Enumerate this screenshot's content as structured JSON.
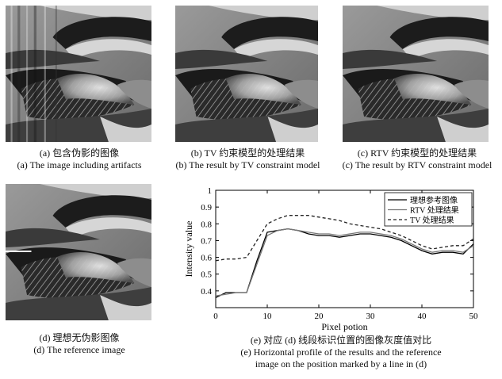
{
  "figures": {
    "a": {
      "caption_cn": "(a) 包含伪影的图像",
      "caption_en": "(a) The image  including artifacts"
    },
    "b": {
      "caption_cn": "(b) TV 约束模型的处理结果",
      "caption_en": "(b) The result by TV constraint model"
    },
    "c": {
      "caption_cn": "(c) RTV 约束模型的处理结果",
      "caption_en": "(c) The result by RTV constraint model"
    },
    "d": {
      "caption_cn": "(d) 理想无伪影图像",
      "caption_en": "(d) The reference image"
    },
    "e": {
      "caption_cn": "(e) 对应 (d) 线段标识位置的图像灰度值对比",
      "caption_en_1": "(e) Horizontal profile of the results and the reference",
      "caption_en_2": "image on the position marked by a line in (d)"
    }
  },
  "chart_data": {
    "type": "line",
    "xlabel": "Pixel potion",
    "ylabel": "Intensity value",
    "xlim": [
      0,
      50
    ],
    "ylim": [
      0.3,
      1.0
    ],
    "xticks": [
      "0",
      "10",
      "20",
      "30",
      "40",
      "50"
    ],
    "yticks": [
      "0.4",
      "0.5",
      "0.6",
      "0.7",
      "0.8",
      "0.9",
      "1"
    ],
    "legend_position": "top-right",
    "grid": false,
    "x": [
      0,
      2,
      4,
      6,
      8,
      10,
      12,
      14,
      16,
      18,
      20,
      22,
      24,
      26,
      28,
      30,
      32,
      34,
      36,
      38,
      40,
      42,
      44,
      46,
      48,
      50
    ],
    "series": [
      {
        "name": "理想参考图像",
        "color": "#000000",
        "style": "solid",
        "values": [
          0.36,
          0.39,
          0.39,
          0.39,
          0.58,
          0.75,
          0.76,
          0.77,
          0.76,
          0.74,
          0.73,
          0.73,
          0.72,
          0.73,
          0.74,
          0.74,
          0.73,
          0.72,
          0.7,
          0.67,
          0.64,
          0.62,
          0.63,
          0.63,
          0.62,
          0.68
        ]
      },
      {
        "name": "RTV 处理结果",
        "color": "#777777",
        "style": "solid",
        "values": [
          0.37,
          0.38,
          0.39,
          0.39,
          0.56,
          0.73,
          0.76,
          0.77,
          0.76,
          0.75,
          0.74,
          0.74,
          0.73,
          0.74,
          0.75,
          0.75,
          0.74,
          0.73,
          0.71,
          0.68,
          0.65,
          0.63,
          0.64,
          0.64,
          0.63,
          0.67
        ]
      },
      {
        "name": "TV 处理结果",
        "color": "#222222",
        "style": "dashed",
        "values": [
          0.58,
          0.59,
          0.59,
          0.6,
          0.7,
          0.8,
          0.83,
          0.85,
          0.85,
          0.85,
          0.84,
          0.83,
          0.82,
          0.8,
          0.79,
          0.78,
          0.77,
          0.75,
          0.73,
          0.7,
          0.67,
          0.65,
          0.66,
          0.67,
          0.67,
          0.71
        ]
      }
    ]
  }
}
